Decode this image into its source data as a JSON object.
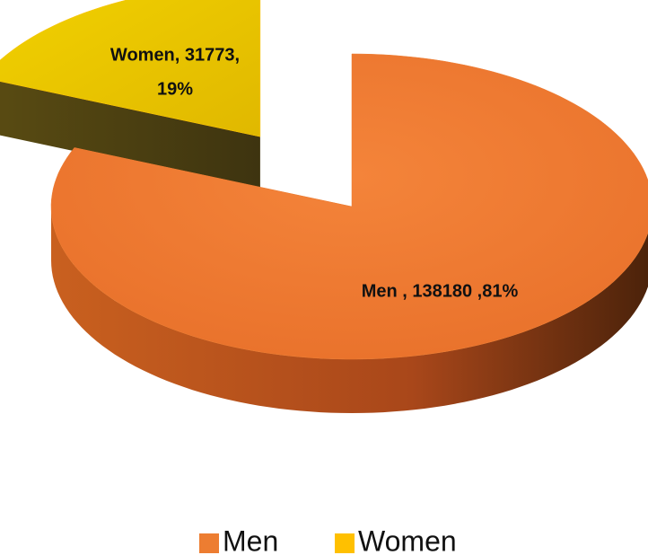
{
  "chart_data": {
    "type": "pie",
    "categories": [
      "Men",
      "Women"
    ],
    "values": [
      138180,
      31773
    ],
    "value_labels": [
      [
        "Men , 138180 ,81%"
      ],
      [
        "Women, 31773,",
        "19%"
      ]
    ],
    "colors": [
      "#ED7D31",
      "#FFC000"
    ],
    "three_d": true,
    "exploded": [
      false,
      true
    ],
    "legend": "bottom"
  }
}
